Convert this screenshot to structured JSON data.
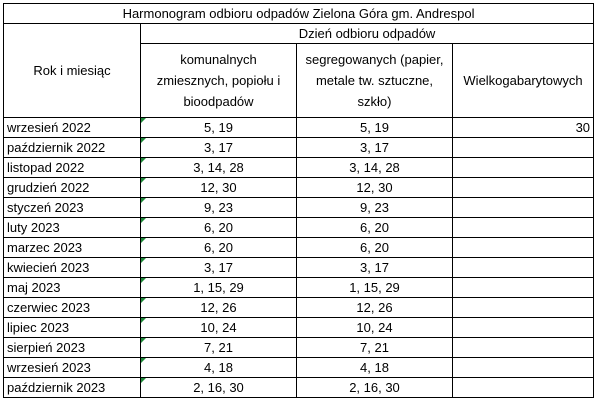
{
  "title": "Harmonogram odbioru odpadów Zielona Góra gm. Andrespol",
  "group_header": "Dzień odbioru odpadów",
  "headers": [
    "Rok i miesiąc",
    "komunalnych zmiesznych, popiołu i bioodpadów",
    "segregowanych (papier, metale tw. sztuczne, szkło)",
    "Wielkogabarytowych"
  ],
  "rows": [
    [
      "wrzesień 2022",
      "5, 19",
      "5, 19",
      30
    ],
    [
      "październik 2022",
      "3, 17",
      "3, 17"
    ],
    [
      "listopad 2022",
      "3, 14, 28",
      "3, 14, 28"
    ],
    [
      "grudzień 2022",
      "12, 30",
      "12, 30"
    ],
    [
      "styczeń 2023",
      "9, 23",
      "9, 23"
    ],
    [
      "luty 2023",
      "6, 20",
      "6, 20"
    ],
    [
      "marzec 2023",
      "6, 20",
      "6, 20"
    ],
    [
      "kwiecień 2023",
      "3, 17",
      "3, 17"
    ],
    [
      "maj 2023",
      "1, 15, 29",
      "1, 15, 29"
    ],
    [
      "czerwiec 2023",
      "12, 26",
      "12, 26"
    ],
    [
      "lipiec 2023",
      "10, 24",
      "10, 24"
    ],
    [
      "sierpień 2023",
      "7, 21",
      "7, 21"
    ],
    [
      "wrzesień 2023",
      "4, 18",
      "4, 18"
    ],
    [
      "październik 2023",
      "2, 16, 30",
      "2, 16, 30"
    ]
  ]
}
